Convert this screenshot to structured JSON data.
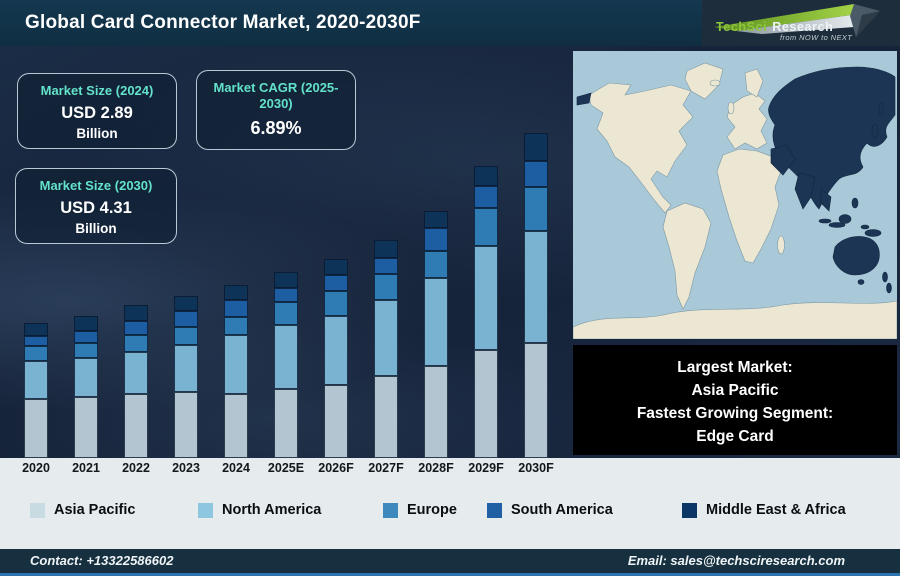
{
  "header": {
    "title": "Global Card Connector Market, 2020-2030F",
    "logo": {
      "brand_primary": "TechSci",
      "brand_secondary": "Research",
      "tagline": "from NOW to NEXT"
    }
  },
  "stats": [
    {
      "label": "Market Size (2024)",
      "value": "USD 2.89",
      "unit": "Billion"
    },
    {
      "label": "Market CAGR (2025-2030)",
      "value": "6.89%",
      "unit": ""
    },
    {
      "label": "Market Size (2030)",
      "value": "USD 4.31",
      "unit": "Billion"
    }
  ],
  "chart_data": {
    "type": "bar",
    "stacked": true,
    "title": "Global Card Connector Market, 2020-2030F",
    "categories": [
      "2020",
      "2021",
      "2022",
      "2023",
      "2024",
      "2025E",
      "2026F",
      "2027F",
      "2028F",
      "2029F",
      "2030F"
    ],
    "value_unit": "relative segment height in px (no numeric labels shown on chart)",
    "series": [
      {
        "name": "Asia Pacific",
        "color": "#b2c5d0",
        "values": [
          59,
          61,
          64,
          66,
          64,
          69,
          73,
          82,
          92,
          108,
          115
        ]
      },
      {
        "name": "North America",
        "color": "#7ab2d1",
        "values": [
          38,
          39,
          42,
          47,
          59,
          64,
          69,
          76,
          88,
          104,
          112
        ]
      },
      {
        "name": "Europe",
        "color": "#2f7cb4",
        "values": [
          15,
          15,
          17,
          18,
          18,
          23,
          25,
          26,
          27,
          38,
          44
        ]
      },
      {
        "name": "South America",
        "color": "#1d5ea2",
        "values": [
          10,
          12,
          14,
          16,
          17,
          14,
          16,
          16,
          23,
          22,
          26
        ]
      },
      {
        "name": "Middle East & Africa",
        "color": "#0e3359",
        "values": [
          13,
          15,
          16,
          15,
          15,
          16,
          16,
          18,
          17,
          20,
          28
        ]
      }
    ],
    "legend_position": "bottom",
    "grid": false
  },
  "legend": [
    {
      "label": "Asia Pacific",
      "color": "#c8dbe3"
    },
    {
      "label": "North America",
      "color": "#8ec6e0"
    },
    {
      "label": "Europe",
      "color": "#3d88bd"
    },
    {
      "label": "South America",
      "color": "#2061a6"
    },
    {
      "label": "Middle East & Africa",
      "color": "#0c3666"
    }
  ],
  "map": {
    "highlighted_region": "Asia Pacific",
    "ocean_color": "#a9c8d8",
    "land_color": "#ece7d2",
    "highlight_color": "#1d3554"
  },
  "callout": {
    "lines": [
      "Largest Market:",
      "Asia Pacific",
      "Fastest Growing Segment:",
      "Edge Card"
    ]
  },
  "footer": {
    "contact": "Contact: +13322586602",
    "email": "Email: sales@techsciresearch.com"
  },
  "theme": {
    "header_bg": "#0f2e41",
    "logo_bg": "#1e2d3b",
    "main_bg": "#16243a",
    "stat_label_accent": "#63e2cb",
    "strip_bg": "#e6ebee",
    "footer_bg": "#16303f",
    "footer_accent_line": "#2d73af",
    "brand_green": "#8dc63f"
  }
}
